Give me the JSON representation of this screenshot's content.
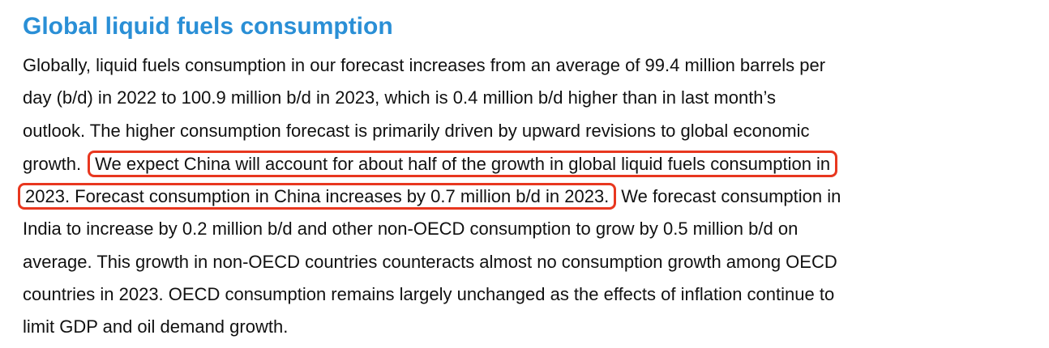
{
  "heading": "Global liquid fuels consumption",
  "paragraph": {
    "lines": [
      [
        "Globally, liquid fuels consumption in our forecast increases from an average of 99.4 million barrels per"
      ],
      [
        "day (b/d) in 2022 to 100.9 million b/d in 2023, which is 0.4 million b/d higher than in last month’s"
      ],
      [
        "outlook. The higher consumption forecast is primarily driven by upward revisions to global economic"
      ],
      [
        "growth.",
        "We expect China will account for about half of the growth in global liquid fuels consumption in"
      ],
      [
        "2023. Forecast consumption in China increases by 0.7 million b/d in 2023.",
        "We forecast consumption in"
      ],
      [
        "India to increase by 0.2 million b/d and other non-OECD consumption to grow by 0.5 million b/d on"
      ],
      [
        "average. This growth in non-OECD countries counteracts almost no consumption growth among OECD"
      ],
      [
        "countries in 2023. OECD consumption remains largely unchanged as the effects of inflation continue to"
      ],
      [
        "limit GDP and oil demand growth."
      ]
    ]
  }
}
